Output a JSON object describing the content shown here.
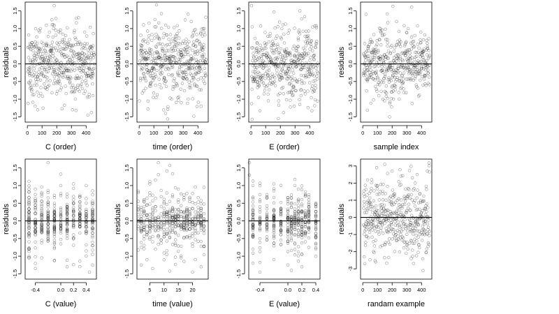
{
  "figure": {
    "background": "#ffffff",
    "point_color": "#000000",
    "line_color": "#000000"
  },
  "chart_data": [
    {
      "type": "scatter",
      "id": "p1",
      "xlabel": "C (order)",
      "ylabel": "residuals",
      "xlim": [
        -15,
        470
      ],
      "ylim": [
        -1.65,
        1.75
      ],
      "xticks": [
        0,
        100,
        200,
        300,
        400
      ],
      "xtick_labels": [
        "0",
        "100",
        "200",
        "300",
        "400"
      ],
      "yticks": [
        -1.5,
        -1.0,
        -0.5,
        0.0,
        0.5,
        1.0,
        1.5
      ],
      "ytick_labels": [
        "-1.5",
        "-1.0",
        "-0.5",
        "0.0",
        "0.5",
        "1.0",
        "1.5"
      ],
      "hline": 0,
      "x_kind": "order",
      "points": [
        [
          183,
          1.65
        ],
        [
          78,
          0.95
        ],
        [
          272,
          1.02
        ],
        [
          390,
          0.9
        ],
        [
          54,
          0.62
        ],
        [
          131,
          0.58
        ],
        [
          219,
          0.6
        ],
        [
          345,
          0.55
        ],
        [
          12,
          0.48
        ],
        [
          22,
          -0.6
        ],
        [
          70,
          -1.3
        ],
        [
          5,
          -1.12
        ],
        [
          107,
          -1.25
        ],
        [
          236,
          -1.27
        ],
        [
          307,
          -1.3
        ],
        [
          412,
          -1.45
        ],
        [
          436,
          -1.38
        ],
        [
          446,
          -0.9
        ],
        [
          168,
          -0.82
        ],
        [
          355,
          -0.78
        ]
      ]
    },
    {
      "type": "scatter",
      "id": "p2",
      "xlabel": "time (order)",
      "ylabel": "residuals",
      "xlim": [
        -15,
        470
      ],
      "ylim": [
        -1.65,
        1.75
      ],
      "xticks": [
        0,
        100,
        200,
        300,
        400
      ],
      "xtick_labels": [
        "0",
        "100",
        "200",
        "300",
        "400"
      ],
      "yticks": [
        -1.5,
        -1.0,
        -0.5,
        0.0,
        0.5,
        1.0,
        1.5
      ],
      "ytick_labels": [
        "-1.5",
        "-1.0",
        "-0.5",
        "0.0",
        "0.5",
        "1.0",
        "1.5"
      ],
      "hline": 0,
      "x_kind": "order",
      "points": [
        [
          118,
          1.67
        ],
        [
          115,
          1.05
        ],
        [
          440,
          0.9
        ],
        [
          448,
          0.82
        ],
        [
          18,
          0.52
        ],
        [
          240,
          0.5
        ],
        [
          330,
          0.48
        ],
        [
          60,
          -1.28
        ],
        [
          2,
          -1.05
        ],
        [
          96,
          -0.95
        ],
        [
          180,
          -1.4
        ],
        [
          286,
          -1.1
        ],
        [
          372,
          -1.48
        ],
        [
          421,
          -1.2
        ],
        [
          150,
          -0.68
        ],
        [
          390,
          -0.62
        ]
      ]
    },
    {
      "type": "scatter",
      "id": "p3",
      "xlabel": "E (order)",
      "ylabel": "residuals",
      "xlim": [
        -15,
        470
      ],
      "ylim": [
        -1.65,
        1.75
      ],
      "xticks": [
        0,
        100,
        200,
        300,
        400
      ],
      "xtick_labels": [
        "0",
        "100",
        "200",
        "300",
        "400"
      ],
      "yticks": [
        -1.5,
        -1.0,
        -0.5,
        0.0,
        0.5,
        1.0,
        1.5
      ],
      "ytick_labels": [
        "-1.5",
        "-1.0",
        "-0.5",
        "0.0",
        "0.5",
        "1.0",
        "1.5"
      ],
      "hline": 0,
      "x_kind": "order",
      "points": [
        [
          3,
          1.65
        ],
        [
          8,
          1.05
        ],
        [
          210,
          1.0
        ],
        [
          260,
          0.95
        ],
        [
          332,
          0.85
        ],
        [
          41,
          0.6
        ],
        [
          150,
          0.55
        ],
        [
          400,
          0.58
        ],
        [
          4,
          -1.13
        ],
        [
          61,
          -1.33
        ],
        [
          118,
          -1.05
        ],
        [
          222,
          -1.38
        ],
        [
          186,
          -1.55
        ],
        [
          294,
          -1.2
        ],
        [
          341,
          -0.9
        ],
        [
          428,
          -0.75
        ]
      ]
    },
    {
      "type": "scatter",
      "id": "p4",
      "xlabel": "sample index",
      "ylabel": "residuals",
      "xlim": [
        -15,
        470
      ],
      "ylim": [
        -1.65,
        1.75
      ],
      "xticks": [
        0,
        100,
        200,
        300,
        400
      ],
      "xtick_labels": [
        "0",
        "100",
        "200",
        "300",
        "400"
      ],
      "yticks": [
        -1.5,
        -1.0,
        -0.5,
        0.0,
        0.5,
        1.0,
        1.5
      ],
      "ytick_labels": [
        "-1.5",
        "-1.0",
        "-0.5",
        "0.0",
        "0.5",
        "1.0",
        "1.5"
      ],
      "hline": 0,
      "x_kind": "order",
      "points": [
        [
          205,
          1.63
        ],
        [
          230,
          1.2
        ],
        [
          120,
          1.0
        ],
        [
          300,
          0.88
        ],
        [
          395,
          0.9
        ],
        [
          50,
          0.62
        ],
        [
          250,
          0.55
        ],
        [
          440,
          0.5
        ],
        [
          150,
          -0.78
        ],
        [
          170,
          -0.98
        ],
        [
          185,
          -1.08
        ],
        [
          196,
          -1.22
        ],
        [
          183,
          -1.5
        ],
        [
          160,
          -0.92
        ],
        [
          410,
          -0.6
        ],
        [
          30,
          -0.45
        ]
      ]
    },
    {
      "type": "scatter",
      "id": "p5",
      "xlabel": "C (value)",
      "ylabel": "residuals",
      "xlim": [
        -0.56,
        0.56
      ],
      "ylim": [
        -1.65,
        1.75
      ],
      "xticks": [
        -0.4,
        0.0,
        0.2,
        0.4
      ],
      "xtick_labels": [
        "-0.4",
        "0.0",
        "0.2",
        "0.4"
      ],
      "yticks": [
        -1.5,
        -1.0,
        -0.5,
        0.0,
        0.5,
        1.0,
        1.5
      ],
      "ytick_labels": [
        "-1.5",
        "-1.0",
        "-0.5",
        "0.0",
        "0.5",
        "1.0",
        "1.5"
      ],
      "hline": 0,
      "x_kind": "grouped",
      "x_levels": [
        -0.5,
        -0.4,
        -0.3,
        -0.2,
        -0.1,
        0.0,
        0.1,
        0.2,
        0.3,
        0.4,
        0.5
      ],
      "points": [
        [
          -0.2,
          1.65
        ],
        [
          -0.5,
          0.9
        ],
        [
          0.5,
          0.85
        ],
        [
          -0.3,
          0.55
        ],
        [
          0.2,
          0.6
        ],
        [
          -0.5,
          -1.05
        ],
        [
          -0.4,
          -1.35
        ],
        [
          -0.1,
          -1.12
        ],
        [
          0.1,
          -1.3
        ],
        [
          0.45,
          -1.45
        ],
        [
          0.5,
          -1.25
        ],
        [
          0.5,
          -0.95
        ]
      ]
    },
    {
      "type": "scatter",
      "id": "p6",
      "xlabel": "time (value)",
      "ylabel": "residuals",
      "xlim": [
        0.5,
        25.5
      ],
      "ylim": [
        -1.65,
        1.75
      ],
      "xticks": [
        5,
        10,
        15,
        20
      ],
      "xtick_labels": [
        "5",
        "10",
        "15",
        "20"
      ],
      "yticks": [
        -1.5,
        -1.0,
        -0.5,
        0.0,
        0.5,
        1.0,
        1.5
      ],
      "ytick_labels": [
        "-1.5",
        "-1.0",
        "-0.5",
        "0.0",
        "0.5",
        "1.0",
        "1.5"
      ],
      "hline": 0,
      "x_kind": "grouped",
      "x_levels": [
        1,
        2,
        3,
        4,
        5,
        6,
        7,
        8,
        9,
        10,
        11,
        12,
        13,
        14,
        15,
        16,
        17,
        18,
        19,
        20,
        21,
        22,
        23,
        24
      ],
      "points": [
        [
          8,
          1.65
        ],
        [
          5,
          1.05
        ],
        [
          24,
          0.95
        ],
        [
          3,
          0.6
        ],
        [
          12,
          0.55
        ],
        [
          2,
          -1.25
        ],
        [
          4,
          -1.1
        ],
        [
          6,
          -1.35
        ],
        [
          12,
          -1.42
        ],
        [
          17,
          -1.15
        ],
        [
          20,
          -1.45
        ],
        [
          23,
          -1.3
        ]
      ]
    },
    {
      "type": "scatter",
      "id": "p7",
      "xlabel": "E (value)",
      "ylabel": "residuals",
      "xlim": [
        -0.56,
        0.46
      ],
      "ylim": [
        -1.65,
        1.75
      ],
      "xticks": [
        -0.4,
        0.0,
        0.2,
        0.4
      ],
      "xtick_labels": [
        "-0.4",
        "0.0",
        "0.2",
        "0.4"
      ],
      "yticks": [
        -1.5,
        -1.0,
        -0.5,
        0.0,
        0.5,
        1.0,
        1.5
      ],
      "ytick_labels": [
        "-1.5",
        "-1.0",
        "-0.5",
        "0.0",
        "0.5",
        "1.0",
        "1.5"
      ],
      "hline": 0,
      "x_kind": "grouped",
      "x_levels": [
        -0.5,
        -0.4,
        -0.3,
        -0.2,
        -0.1,
        0.0,
        0.05,
        0.1,
        0.15,
        0.2,
        0.25,
        0.3,
        0.4
      ],
      "points": [
        [
          -0.55,
          1.65
        ],
        [
          -0.55,
          1.3
        ],
        [
          -0.5,
          1.0
        ],
        [
          0.1,
          1.0
        ],
        [
          0.15,
          0.9
        ],
        [
          0.3,
          0.6
        ],
        [
          -0.5,
          -1.2
        ],
        [
          -0.4,
          -1.45
        ],
        [
          -0.2,
          -1.1
        ],
        [
          0.0,
          -1.25
        ],
        [
          0.05,
          -1.4
        ],
        [
          0.2,
          -1.3
        ]
      ]
    },
    {
      "type": "scatter",
      "id": "p8",
      "xlabel": "randam example",
      "ylabel": "residuals",
      "xlim": [
        -15,
        470
      ],
      "ylim": [
        -3.6,
        3.4
      ],
      "xticks": [
        0,
        100,
        200,
        300,
        400
      ],
      "xtick_labels": [
        "0",
        "100",
        "200",
        "300",
        "400"
      ],
      "yticks": [
        -3,
        -2,
        -1,
        0,
        1,
        2,
        3
      ],
      "ytick_labels": [
        "-3",
        "-2",
        "-1",
        "0",
        "1",
        "2",
        "3"
      ],
      "hline": 0,
      "x_kind": "order",
      "y_sd": 1.0,
      "points": [
        [
          14,
          -2.7
        ],
        [
          10,
          -2.3
        ],
        [
          88,
          -2.6
        ],
        [
          330,
          -2.4
        ],
        [
          410,
          -3.1
        ],
        [
          150,
          3.1
        ],
        [
          95,
          2.9
        ],
        [
          200,
          2.7
        ],
        [
          370,
          2.5
        ],
        [
          440,
          2.7
        ],
        [
          60,
          2.2
        ],
        [
          260,
          2.4
        ]
      ]
    }
  ]
}
